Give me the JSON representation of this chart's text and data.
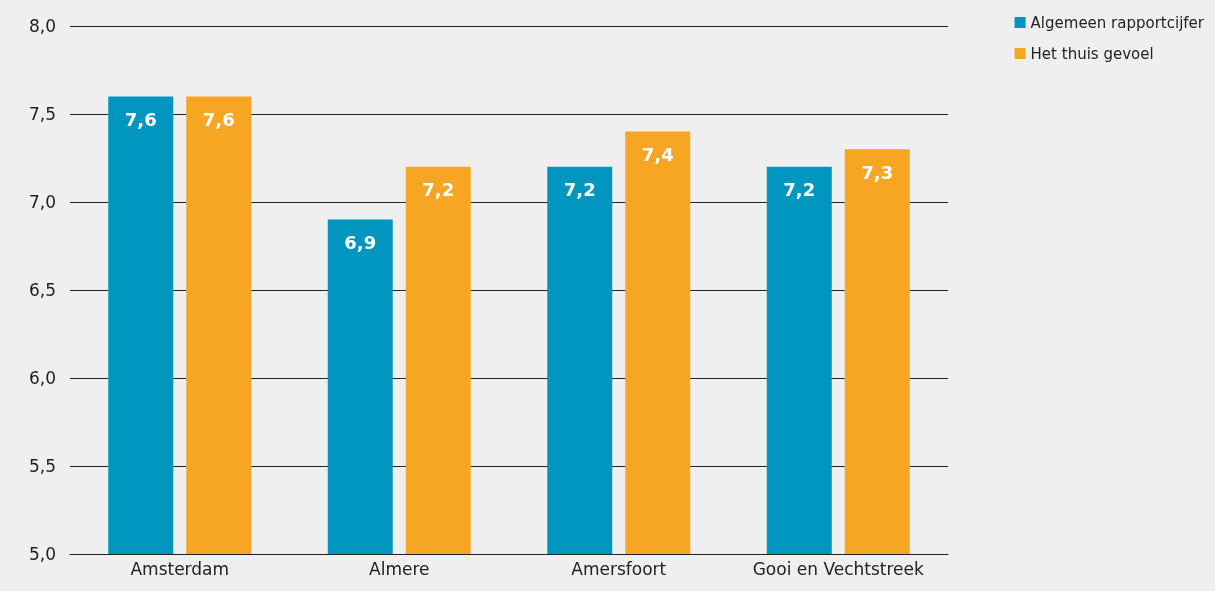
{
  "chart_data": {
    "type": "bar",
    "categories": [
      "Amsterdam",
      "Almere",
      "Amersfoort",
      "Gooi en Vechtstreek"
    ],
    "series": [
      {
        "name": "Algemeen rapportcijfer",
        "color": "#0096bf",
        "values": [
          7.6,
          6.9,
          7.2,
          7.2
        ],
        "value_labels": [
          "7,6",
          "6,9",
          "7,2",
          "7,2"
        ]
      },
      {
        "name": "Het thuis gevoel",
        "color": "#f6a623",
        "values": [
          7.6,
          7.2,
          7.4,
          7.3
        ],
        "value_labels": [
          "7,6",
          "7,2",
          "7,4",
          "7,3"
        ]
      }
    ],
    "ylim": [
      5,
      8
    ],
    "yticks": [
      {
        "value": 5,
        "label": "5,0"
      },
      {
        "value": 5.5,
        "label": "5,5"
      },
      {
        "value": 6,
        "label": "6,0"
      },
      {
        "value": 6.5,
        "label": "6,5"
      },
      {
        "value": 7,
        "label": "7,0"
      },
      {
        "value": 7.5,
        "label": "7,5"
      },
      {
        "value": 8,
        "label": "8,0"
      }
    ],
    "grid": "y",
    "legend": "top right"
  }
}
